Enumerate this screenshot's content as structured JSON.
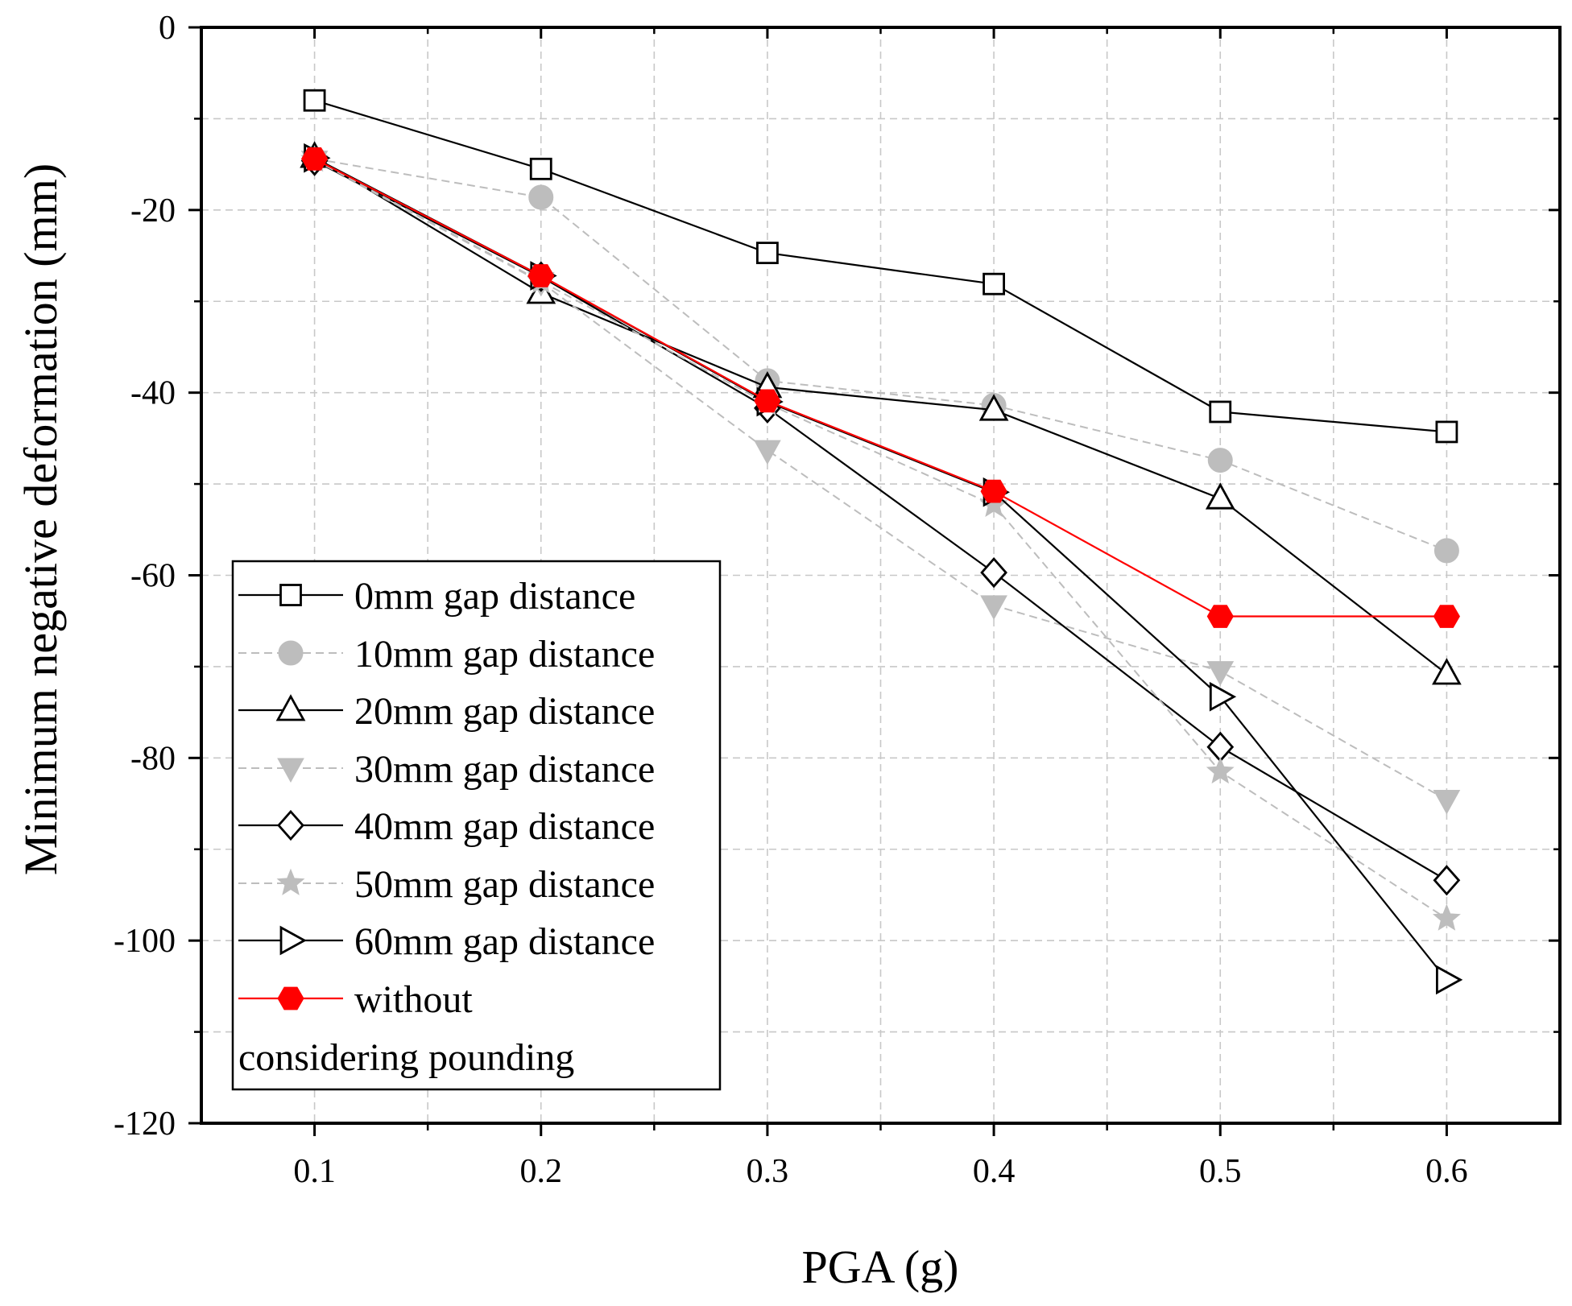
{
  "chart_data": {
    "type": "line",
    "title": "",
    "xlabel": "PGA (g)",
    "ylabel": "Minimum negative deformation (mm)",
    "xlim": [
      0.05,
      0.65
    ],
    "ylim": [
      -120,
      0
    ],
    "x_major_ticks": [
      0.1,
      0.2,
      0.3,
      0.4,
      0.5,
      0.6
    ],
    "x_tick_labels": [
      "0.1",
      "0.2",
      "0.3",
      "0.4",
      "0.5",
      "0.6"
    ],
    "x_minor_ticks": [
      0.15,
      0.25,
      0.35,
      0.45,
      0.55
    ],
    "y_major_ticks": [
      0,
      -20,
      -40,
      -60,
      -80,
      -100,
      -120
    ],
    "y_tick_labels": [
      "0",
      "-20",
      "-40",
      "-60",
      "-80",
      "-100",
      "-120"
    ],
    "y_minor_ticks": [
      -10,
      -30,
      -50,
      -70,
      -90,
      -110
    ],
    "grid": true,
    "legend_position": "bottom-left",
    "x": [
      0.1,
      0.2,
      0.3,
      0.4,
      0.5,
      0.6
    ],
    "series": [
      {
        "name": "0mm gap distance",
        "label": "0mm gap distance",
        "marker": "square-open",
        "color": "#000000",
        "line": "solid",
        "values": [
          -8,
          -15.5,
          -24.7,
          -28.1,
          -42.1,
          -44.3
        ]
      },
      {
        "name": "10mm gap distance",
        "label": "10mm gap distance",
        "marker": "circle-filled",
        "color": "#bdbdbd",
        "line": "dashed",
        "values": [
          -14.4,
          -18.6,
          -38.7,
          -41.4,
          -47.4,
          -57.3
        ]
      },
      {
        "name": "20mm gap distance",
        "label": "20mm gap distance",
        "marker": "triangle-up-open",
        "color": "#000000",
        "line": "solid",
        "values": [
          -14.2,
          -29.1,
          -39.4,
          -41.9,
          -51.6,
          -70.8
        ]
      },
      {
        "name": "30mm gap distance",
        "label": "30mm gap distance",
        "marker": "triangle-down-filled",
        "color": "#bdbdbd",
        "line": "dashed",
        "values": [
          -14.6,
          -27.9,
          -46.3,
          -63.3,
          -70.5,
          -84.6
        ]
      },
      {
        "name": "40mm gap distance",
        "label": "40mm gap distance",
        "marker": "diamond-open",
        "color": "#000000",
        "line": "solid",
        "values": [
          -14.6,
          -27.3,
          -41.7,
          -59.7,
          -78.8,
          -93.4
        ]
      },
      {
        "name": "50mm gap distance",
        "label": "50mm gap distance",
        "marker": "star-filled",
        "color": "#bdbdbd",
        "line": "dashed",
        "values": [
          -14.5,
          -27.8,
          -41.2,
          -52.3,
          -81.5,
          -97.6
        ]
      },
      {
        "name": "60mm gap distance",
        "label": "60mm gap distance",
        "marker": "triangle-right-open",
        "color": "#000000",
        "line": "solid",
        "values": [
          -14.3,
          -27.2,
          -41.0,
          -50.9,
          -73.3,
          -104.3
        ]
      },
      {
        "name": "without considering pounding",
        "label": "without",
        "label_line2": "considering pounding",
        "marker": "hexagon-filled",
        "color": "#ff0000",
        "line": "solid",
        "values": [
          -14.4,
          -27.2,
          -40.9,
          -50.8,
          -64.5,
          -64.5
        ]
      }
    ]
  }
}
